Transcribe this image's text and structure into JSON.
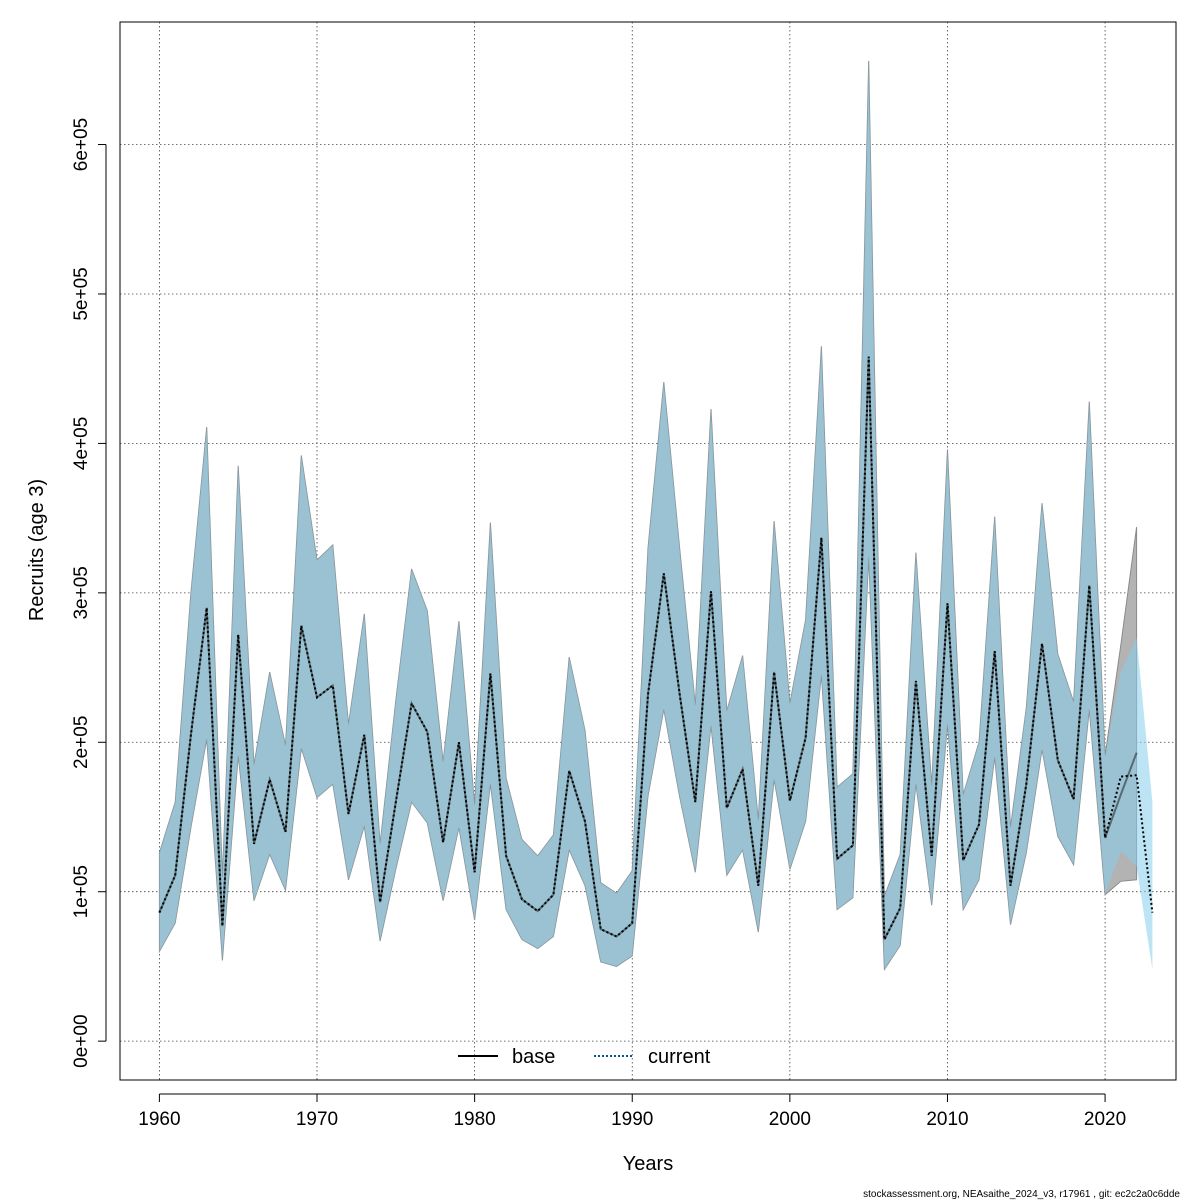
{
  "chart_data": {
    "type": "line",
    "title": "",
    "xlabel": "Years",
    "ylabel": "Recruits (age 3)",
    "xlim": [
      1957.5,
      2024.5
    ],
    "ylim": [
      -26000,
      682000
    ],
    "x_ticks": [
      1960,
      1970,
      1980,
      1990,
      2000,
      2010,
      2020
    ],
    "x_tick_labels": [
      "1960",
      "1970",
      "1980",
      "1990",
      "2000",
      "2010",
      "2020"
    ],
    "y_ticks": [
      0,
      100000,
      200000,
      300000,
      400000,
      500000,
      600000
    ],
    "y_tick_labels": [
      "0e+00",
      "1e+05",
      "2e+05",
      "3e+05",
      "4e+05",
      "5e+05",
      "6e+05"
    ],
    "grid": true,
    "legend_position": "bottom-center",
    "colors": {
      "base_line": "#000000",
      "base_band": "#b3b3b3",
      "current_line": "#005b8f",
      "current_band": "#87ceeb",
      "overlap_band": "#a3c3d3"
    },
    "series": [
      {
        "name": "base",
        "style": "solid",
        "x": [
          1960,
          1961,
          1962,
          1963,
          1964,
          1965,
          1966,
          1967,
          1968,
          1969,
          1970,
          1971,
          1972,
          1973,
          1974,
          1975,
          1976,
          1977,
          1978,
          1979,
          1980,
          1981,
          1982,
          1983,
          1984,
          1985,
          1986,
          1987,
          1988,
          1989,
          1990,
          1991,
          1992,
          1993,
          1994,
          1995,
          1996,
          1997,
          1998,
          1999,
          2000,
          2001,
          2002,
          2003,
          2004,
          2005,
          2006,
          2007,
          2008,
          2009,
          2010,
          2011,
          2012,
          2013,
          2014,
          2015,
          2016,
          2017,
          2018,
          2019,
          2020,
          2021,
          2022
        ],
        "values": [
          86000,
          111000,
          205000,
          290000,
          77000,
          272000,
          132000,
          175000,
          140000,
          278000,
          230000,
          238000,
          152000,
          205000,
          93000,
          160000,
          226000,
          207000,
          133000,
          200000,
          113000,
          246000,
          124000,
          95000,
          87000,
          98000,
          181000,
          147000,
          75000,
          70000,
          79000,
          232000,
          313000,
          233000,
          160000,
          301000,
          156000,
          182000,
          104000,
          247000,
          161000,
          203000,
          337000,
          122000,
          131000,
          458000,
          68000,
          89000,
          241000,
          124000,
          293000,
          121000,
          145000,
          261000,
          104000,
          172000,
          266000,
          188000,
          162000,
          305000,
          136000,
          165000,
          193000
        ],
        "lower": [
          60000,
          79000,
          143000,
          202000,
          54000,
          191000,
          94000,
          125000,
          101000,
          196000,
          163000,
          172000,
          108000,
          144000,
          67000,
          115000,
          160000,
          146000,
          94000,
          143000,
          81000,
          172000,
          88000,
          68000,
          62000,
          70000,
          128000,
          104000,
          53000,
          50000,
          57000,
          164000,
          222000,
          164000,
          113000,
          211000,
          111000,
          128000,
          73000,
          175000,
          115000,
          147000,
          245000,
          88000,
          96000,
          324000,
          48000,
          64000,
          172000,
          91000,
          212000,
          88000,
          108000,
          190000,
          78000,
          126000,
          195000,
          137000,
          118000,
          222000,
          98000,
          107000,
          108000
        ],
        "upper": [
          126000,
          160000,
          300000,
          411000,
          110000,
          385000,
          185000,
          247000,
          198000,
          392000,
          322000,
          332000,
          212000,
          286000,
          132000,
          228000,
          316000,
          288000,
          187000,
          281000,
          158000,
          347000,
          176000,
          135000,
          124000,
          138000,
          257000,
          208000,
          106000,
          99000,
          114000,
          330000,
          441000,
          331000,
          225000,
          423000,
          221000,
          258000,
          148000,
          348000,
          226000,
          282000,
          465000,
          170000,
          179000,
          656000,
          97000,
          125000,
          327000,
          171000,
          396000,
          165000,
          200000,
          351000,
          143000,
          223000,
          360000,
          259000,
          227000,
          428000,
          191000,
          265000,
          344000
        ]
      },
      {
        "name": "current",
        "style": "dotted",
        "x": [
          1960,
          1961,
          1962,
          1963,
          1964,
          1965,
          1966,
          1967,
          1968,
          1969,
          1970,
          1971,
          1972,
          1973,
          1974,
          1975,
          1976,
          1977,
          1978,
          1979,
          1980,
          1981,
          1982,
          1983,
          1984,
          1985,
          1986,
          1987,
          1988,
          1989,
          1990,
          1991,
          1992,
          1993,
          1994,
          1995,
          1996,
          1997,
          1998,
          1999,
          2000,
          2001,
          2002,
          2003,
          2004,
          2005,
          2006,
          2007,
          2008,
          2009,
          2010,
          2011,
          2012,
          2013,
          2014,
          2015,
          2016,
          2017,
          2018,
          2019,
          2020,
          2021,
          2022,
          2023
        ],
        "values": [
          86000,
          111000,
          205000,
          290000,
          77000,
          272000,
          132000,
          175000,
          140000,
          278000,
          230000,
          238000,
          152000,
          205000,
          93000,
          160000,
          226000,
          207000,
          133000,
          200000,
          113000,
          246000,
          124000,
          95000,
          87000,
          98000,
          181000,
          147000,
          75000,
          70000,
          79000,
          232000,
          313000,
          233000,
          160000,
          301000,
          156000,
          182000,
          104000,
          247000,
          161000,
          203000,
          337000,
          122000,
          131000,
          458000,
          68000,
          89000,
          241000,
          124000,
          293000,
          121000,
          145000,
          261000,
          104000,
          172000,
          266000,
          188000,
          162000,
          305000,
          136000,
          177000,
          178000,
          86000
        ],
        "lower": [
          60000,
          79000,
          143000,
          202000,
          54000,
          191000,
          94000,
          125000,
          101000,
          196000,
          163000,
          172000,
          108000,
          144000,
          67000,
          115000,
          160000,
          146000,
          94000,
          143000,
          81000,
          172000,
          88000,
          68000,
          62000,
          70000,
          128000,
          104000,
          53000,
          50000,
          57000,
          164000,
          222000,
          164000,
          113000,
          211000,
          111000,
          128000,
          73000,
          175000,
          115000,
          147000,
          245000,
          88000,
          96000,
          324000,
          48000,
          64000,
          172000,
          91000,
          212000,
          88000,
          108000,
          190000,
          78000,
          126000,
          195000,
          137000,
          118000,
          222000,
          98000,
          127000,
          117000,
          48000
        ],
        "upper": [
          126000,
          160000,
          300000,
          411000,
          110000,
          385000,
          185000,
          247000,
          198000,
          392000,
          322000,
          332000,
          212000,
          286000,
          132000,
          228000,
          316000,
          288000,
          187000,
          281000,
          158000,
          347000,
          176000,
          135000,
          124000,
          138000,
          257000,
          208000,
          106000,
          99000,
          114000,
          330000,
          441000,
          331000,
          225000,
          423000,
          221000,
          258000,
          148000,
          348000,
          226000,
          282000,
          465000,
          170000,
          179000,
          656000,
          97000,
          125000,
          327000,
          171000,
          396000,
          165000,
          200000,
          351000,
          143000,
          223000,
          360000,
          259000,
          227000,
          428000,
          191000,
          247000,
          270000,
          160000
        ]
      }
    ]
  },
  "footer": "stockassessment.org, NEAsaithe_2024_v3, r17961 , git: ec2c2a0c6dde"
}
